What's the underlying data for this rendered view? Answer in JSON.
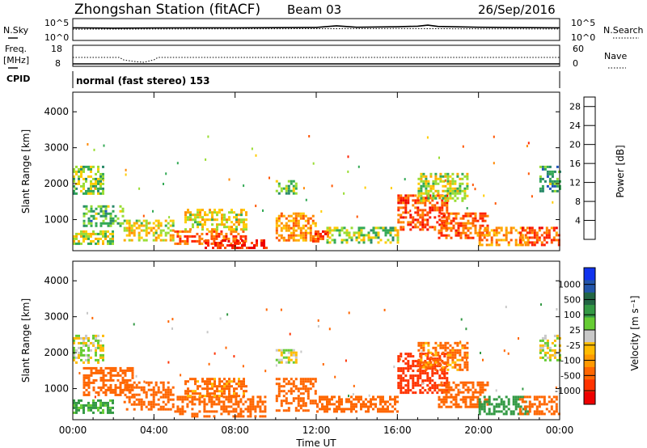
{
  "header": {
    "station": "Zhongshan Station (fitACF)",
    "beam": "Beam 03",
    "date": "26/Sep/2016"
  },
  "colors": {
    "power_scale": [
      "#1010ff",
      "#2255bb",
      "#2a8a6a",
      "#33aa55",
      "#99dd33",
      "#ffcc00",
      "#ffaa00",
      "#ff8800",
      "#ff5500",
      "#ff2200",
      "#ee0000"
    ],
    "velocity_scale": [
      "#ee0000",
      "#ff3300",
      "#ff6600",
      "#ff9900",
      "#ffbb00",
      "#c8c8c8",
      "#66cc33",
      "#339944",
      "#226644",
      "#2255aa",
      "#1133ee"
    ],
    "noise_line": "#000000"
  },
  "chart_data": [
    {
      "type": "line",
      "panel": "noise",
      "left_label": "N.Sky",
      "right_label": "N.Search",
      "y_ticks_left": [
        "10^5",
        "10^0"
      ],
      "y_ticks_right": [
        "10^5",
        "10^0"
      ],
      "scale": "log",
      "ylim": [
        1,
        100000
      ],
      "series": [
        {
          "style": "solid",
          "x": [
            0,
            2,
            4,
            6,
            8,
            10,
            12,
            13,
            14,
            16,
            17,
            17.5,
            18,
            20,
            22,
            24
          ],
          "y": [
            1000,
            800,
            900,
            1000,
            1000,
            1100,
            1300,
            4000,
            1500,
            2000,
            3000,
            6000,
            2500,
            1500,
            1200,
            1000
          ]
        },
        {
          "style": "dotted",
          "x": [
            0,
            4,
            8,
            12,
            16,
            20,
            24
          ],
          "y": [
            400,
            450,
            500,
            550,
            600,
            500,
            450
          ]
        }
      ]
    },
    {
      "type": "scatter",
      "panel": "frequency",
      "left_label": "Freq. [MHz]",
      "right_label": "Nave",
      "y_ticks_left": [
        "18",
        "8"
      ],
      "y_ticks_right": [
        "60",
        "0"
      ],
      "series": [
        {
          "style": "dotted",
          "x": [
            0,
            2.3,
            2.5,
            3.0,
            3.5,
            4.0,
            4.2,
            24
          ],
          "y": [
            12,
            12,
            10.5,
            9.5,
            9.0,
            10.5,
            12,
            12
          ]
        },
        {
          "style": "solid",
          "x": [
            0,
            24
          ],
          "y": [
            8,
            8
          ]
        }
      ]
    },
    {
      "type": "text",
      "panel": "cpid",
      "label": "CPID",
      "value": "normal (fast stereo) 153"
    },
    {
      "type": "heatmap",
      "panel": "power",
      "ylabel": "Slant Range [km]",
      "xlabel": "Time UT",
      "x_ticks": [
        "00:00",
        "04:00",
        "08:00",
        "12:00",
        "16:00",
        "20:00",
        "00:00"
      ],
      "y_ticks": [
        1000,
        2000,
        3000,
        4000
      ],
      "ylim": [
        180,
        4500
      ],
      "xlim": [
        0,
        24
      ],
      "colorbar": {
        "label": "Power [dB]",
        "ticks": [
          4,
          8,
          12,
          16,
          20,
          24,
          28
        ],
        "range": [
          0,
          30
        ]
      },
      "regions": [
        {
          "t0": 0.0,
          "t1": 1.5,
          "r0": 1700,
          "r1": 2500,
          "v": 11
        },
        {
          "t0": 0.0,
          "t1": 2.0,
          "r0": 300,
          "r1": 700,
          "v": 13
        },
        {
          "t0": 0.5,
          "t1": 2.5,
          "r0": 800,
          "r1": 1400,
          "v": 9
        },
        {
          "t0": 2.5,
          "t1": 5.0,
          "r0": 400,
          "r1": 1000,
          "v": 15
        },
        {
          "t0": 5.0,
          "t1": 8.5,
          "r0": 300,
          "r1": 700,
          "v": 24
        },
        {
          "t0": 5.5,
          "t1": 8.5,
          "r0": 700,
          "r1": 1300,
          "v": 15
        },
        {
          "t0": 6.5,
          "t1": 9.5,
          "r0": 200,
          "r1": 450,
          "v": 28
        },
        {
          "t0": 10.0,
          "t1": 11.0,
          "r0": 1700,
          "r1": 2100,
          "v": 10
        },
        {
          "t0": 10.0,
          "t1": 12.0,
          "r0": 400,
          "r1": 1200,
          "v": 20
        },
        {
          "t0": 11.8,
          "t1": 12.6,
          "r0": 400,
          "r1": 700,
          "v": 25
        },
        {
          "t0": 12.5,
          "t1": 16.0,
          "r0": 350,
          "r1": 800,
          "v": 12
        },
        {
          "t0": 16.0,
          "t1": 18.5,
          "r0": 700,
          "r1": 1700,
          "v": 25
        },
        {
          "t0": 17.0,
          "t1": 19.5,
          "r0": 1500,
          "r1": 2300,
          "v": 14
        },
        {
          "t0": 18.0,
          "t1": 20.5,
          "r0": 500,
          "r1": 1200,
          "v": 24
        },
        {
          "t0": 20.0,
          "t1": 22.5,
          "r0": 300,
          "r1": 800,
          "v": 20
        },
        {
          "t0": 22.0,
          "t1": 24.0,
          "r0": 300,
          "r1": 800,
          "v": 24
        },
        {
          "t0": 23.0,
          "t1": 24.0,
          "r0": 1800,
          "r1": 2500,
          "v": 9
        }
      ]
    },
    {
      "type": "heatmap",
      "panel": "velocity",
      "ylabel": "Slant Range [km]",
      "xlabel": "Time UT",
      "x_ticks": [
        "00:00",
        "04:00",
        "08:00",
        "12:00",
        "16:00",
        "20:00",
        "00:00"
      ],
      "y_ticks": [
        1000,
        2000,
        3000,
        4000
      ],
      "ylim": [
        180,
        4500
      ],
      "xlim": [
        0,
        24
      ],
      "colorbar": {
        "label": "Velocity [m s⁻¹]",
        "ticks": [
          "1000",
          "500",
          "100",
          "25",
          "-25",
          "-100",
          "-500",
          "-1000"
        ]
      },
      "regions": [
        {
          "t0": 0.0,
          "t1": 1.5,
          "r0": 1700,
          "r1": 2500,
          "v": 0
        },
        {
          "t0": 0.0,
          "t1": 2.0,
          "r0": 300,
          "r1": 700,
          "v": 150
        },
        {
          "t0": 0.5,
          "t1": 3.0,
          "r0": 800,
          "r1": 1600,
          "v": -300
        },
        {
          "t0": 2.5,
          "t1": 5.0,
          "r0": 400,
          "r1": 1200,
          "v": -200
        },
        {
          "t0": 5.0,
          "t1": 9.5,
          "r0": 200,
          "r1": 800,
          "v": -250
        },
        {
          "t0": 5.5,
          "t1": 8.5,
          "r0": 800,
          "r1": 1300,
          "v": -150
        },
        {
          "t0": 10.0,
          "t1": 11.0,
          "r0": 1700,
          "r1": 2100,
          "v": 0
        },
        {
          "t0": 10.0,
          "t1": 12.0,
          "r0": 400,
          "r1": 1300,
          "v": -200
        },
        {
          "t0": 12.0,
          "t1": 16.0,
          "r0": 350,
          "r1": 800,
          "v": -250
        },
        {
          "t0": 16.0,
          "t1": 18.5,
          "r0": 900,
          "r1": 2000,
          "v": -600
        },
        {
          "t0": 17.0,
          "t1": 19.5,
          "r0": 1500,
          "r1": 2300,
          "v": -150
        },
        {
          "t0": 18.0,
          "t1": 20.5,
          "r0": 500,
          "r1": 1200,
          "v": -400
        },
        {
          "t0": 20.0,
          "t1": 22.5,
          "r0": 300,
          "r1": 800,
          "v": 200
        },
        {
          "t0": 22.0,
          "t1": 24.0,
          "r0": 300,
          "r1": 800,
          "v": -300
        },
        {
          "t0": 23.0,
          "t1": 24.0,
          "r0": 1800,
          "r1": 2500,
          "v": 0
        }
      ]
    }
  ]
}
